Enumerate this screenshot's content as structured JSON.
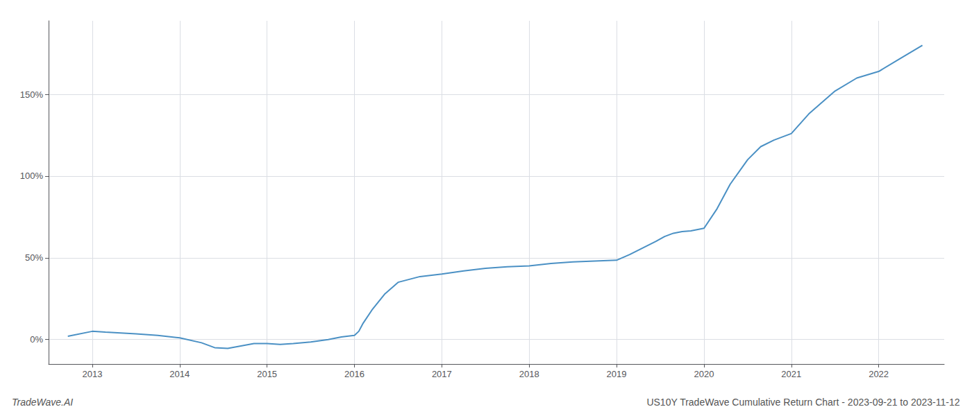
{
  "chart_data": {
    "type": "line",
    "title": "US10Y TradeWave Cumulative Return Chart - 2023-09-21 to 2023-11-12",
    "annotations": [
      "TradeWave.AI"
    ],
    "color": "#4a90c4",
    "x": [
      2012.72,
      2013.0,
      2013.15,
      2013.5,
      2013.75,
      2014.0,
      2014.25,
      2014.4,
      2014.55,
      2014.7,
      2014.85,
      2015.0,
      2015.15,
      2015.3,
      2015.5,
      2015.7,
      2015.85,
      2016.0,
      2016.05,
      2016.1,
      2016.2,
      2016.35,
      2016.5,
      2016.75,
      2017.0,
      2017.25,
      2017.5,
      2017.75,
      2018.0,
      2018.25,
      2018.5,
      2018.75,
      2019.0,
      2019.15,
      2019.3,
      2019.45,
      2019.55,
      2019.65,
      2019.75,
      2019.85,
      2020.0,
      2020.15,
      2020.3,
      2020.5,
      2020.65,
      2020.8,
      2021.0,
      2021.2,
      2021.5,
      2021.75,
      2022.0,
      2022.25,
      2022.5
    ],
    "values": [
      2.0,
      5.0,
      4.5,
      3.5,
      2.5,
      1.0,
      -2.0,
      -5.0,
      -5.5,
      -4.0,
      -2.5,
      -2.5,
      -3.0,
      -2.5,
      -1.5,
      0.0,
      1.5,
      2.5,
      5.0,
      10.0,
      18.0,
      28.0,
      35.0,
      38.5,
      40.0,
      42.0,
      43.5,
      44.5,
      45.0,
      46.5,
      47.5,
      48.0,
      48.5,
      52.0,
      56.0,
      60.0,
      63.0,
      65.0,
      66.0,
      66.5,
      68.0,
      80.0,
      95.0,
      110.0,
      118.0,
      122.0,
      126.0,
      138.0,
      152.0,
      160.0,
      164.0,
      172.0,
      180.0
    ],
    "xlim": [
      2012.5,
      2022.75
    ],
    "ylim": [
      -15,
      195
    ],
    "xticks": [
      2013,
      2014,
      2015,
      2016,
      2017,
      2018,
      2019,
      2020,
      2021,
      2022
    ],
    "yticks": [
      {
        "value": 0,
        "label": "0%"
      },
      {
        "value": 50,
        "label": "50%"
      },
      {
        "value": 100,
        "label": "100%"
      },
      {
        "value": 150,
        "label": "150%"
      }
    ],
    "grid": true
  }
}
